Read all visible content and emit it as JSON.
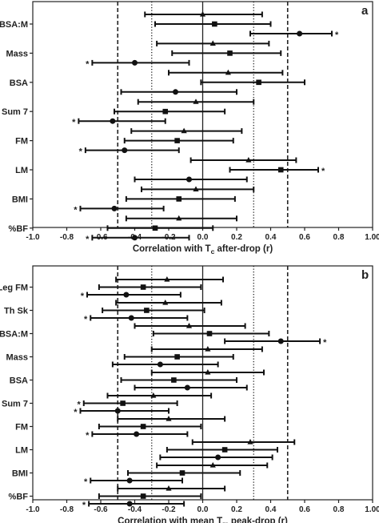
{
  "chart_data": [
    {
      "type": "forest",
      "panel_label": "a",
      "xlabel_main": "Correlation with T",
      "xlabel_sub": "c",
      "xlabel_tail": " after-drop (r)",
      "xlim": [
        -1.0,
        1.0
      ],
      "xticks": [
        "-1.0",
        "-0.8",
        "-0.6",
        "-0.4",
        "-0.2",
        "0.0",
        "0.2",
        "0.4",
        "0.6",
        "0.8",
        "1.00"
      ],
      "reference_lines": {
        "solid": [
          0.0
        ],
        "dotted": [
          -0.3,
          0.3
        ],
        "dashed": [
          -0.5,
          0.5
        ]
      },
      "categories": [
        "BSA:M",
        "Mass",
        "BSA",
        "Sum 7",
        "FM",
        "LM",
        "BMI",
        "%BF"
      ],
      "marker_order": [
        "triangle",
        "square",
        "circle"
      ],
      "rows": [
        [
          {
            "marker": "triangle",
            "r": 0.0,
            "lo": -0.34,
            "hi": 0.35,
            "sig": false
          },
          {
            "marker": "square",
            "r": 0.07,
            "lo": -0.28,
            "hi": 0.4,
            "sig": false
          },
          {
            "marker": "circle",
            "r": 0.57,
            "lo": 0.28,
            "hi": 0.76,
            "sig": true
          }
        ],
        [
          {
            "marker": "triangle",
            "r": 0.06,
            "lo": -0.27,
            "hi": 0.39,
            "sig": false
          },
          {
            "marker": "square",
            "r": 0.16,
            "lo": -0.18,
            "hi": 0.46,
            "sig": false
          },
          {
            "marker": "circle",
            "r": -0.4,
            "lo": -0.65,
            "hi": -0.08,
            "sig": true
          }
        ],
        [
          {
            "marker": "triangle",
            "r": 0.15,
            "lo": -0.2,
            "hi": 0.47,
            "sig": false
          },
          {
            "marker": "square",
            "r": 0.33,
            "lo": -0.01,
            "hi": 0.6,
            "sig": false
          },
          {
            "marker": "circle",
            "r": -0.16,
            "lo": -0.48,
            "hi": 0.2,
            "sig": false
          }
        ],
        [
          {
            "marker": "triangle",
            "r": -0.04,
            "lo": -0.38,
            "hi": 0.3,
            "sig": false
          },
          {
            "marker": "square",
            "r": -0.22,
            "lo": -0.52,
            "hi": 0.13,
            "sig": false
          },
          {
            "marker": "circle",
            "r": -0.53,
            "lo": -0.73,
            "hi": -0.22,
            "sig": true
          }
        ],
        [
          {
            "marker": "triangle",
            "r": -0.11,
            "lo": -0.42,
            "hi": 0.23,
            "sig": false
          },
          {
            "marker": "square",
            "r": -0.15,
            "lo": -0.46,
            "hi": 0.18,
            "sig": false
          },
          {
            "marker": "circle",
            "r": -0.46,
            "lo": -0.69,
            "hi": -0.14,
            "sig": true
          }
        ],
        [
          {
            "marker": "triangle",
            "r": 0.27,
            "lo": -0.07,
            "hi": 0.55,
            "sig": false
          },
          {
            "marker": "square",
            "r": 0.46,
            "lo": 0.16,
            "hi": 0.68,
            "sig": true
          },
          {
            "marker": "circle",
            "r": -0.08,
            "lo": -0.4,
            "hi": 0.26,
            "sig": false
          }
        ],
        [
          {
            "marker": "triangle",
            "r": -0.04,
            "lo": -0.36,
            "hi": 0.3,
            "sig": false
          },
          {
            "marker": "square",
            "r": -0.14,
            "lo": -0.45,
            "hi": 0.19,
            "sig": false
          },
          {
            "marker": "circle",
            "r": -0.52,
            "lo": -0.72,
            "hi": -0.23,
            "sig": true
          }
        ],
        [
          {
            "marker": "triangle",
            "r": -0.14,
            "lo": -0.45,
            "hi": 0.2,
            "sig": false
          },
          {
            "marker": "square",
            "r": -0.28,
            "lo": -0.56,
            "hi": 0.06,
            "sig": false
          },
          {
            "marker": "circle",
            "r": -0.4,
            "lo": -0.65,
            "hi": -0.08,
            "sig": true
          }
        ]
      ]
    },
    {
      "type": "forest",
      "panel_label": "b",
      "xlabel_main": "Correlation with mean T",
      "xlabel_sub": "m",
      "xlabel_tail": " peak-drop (r)",
      "xlim": [
        -1.0,
        1.0
      ],
      "xticks": [
        "-1.0",
        "-0.8",
        "-0.6",
        "-0.4",
        "-0.2",
        "0.0",
        "0.2",
        "0.4",
        "0.6",
        "0.8",
        "1.00"
      ],
      "reference_lines": {
        "solid": [
          0.0
        ],
        "dotted": [
          -0.3,
          0.3
        ],
        "dashed": [
          -0.5,
          0.5
        ]
      },
      "categories": [
        "Leg FM",
        "Th Sk",
        "BSA:M",
        "Mass",
        "BSA",
        "Sum 7",
        "FM",
        "LM",
        "BMI",
        "%BF"
      ],
      "marker_order": [
        "triangle",
        "square",
        "circle"
      ],
      "rows": [
        [
          {
            "marker": "triangle",
            "r": -0.21,
            "lo": -0.51,
            "hi": 0.12,
            "sig": false
          },
          {
            "marker": "square",
            "r": -0.35,
            "lo": -0.61,
            "hi": -0.01,
            "sig": false
          },
          {
            "marker": "circle",
            "r": -0.45,
            "lo": -0.68,
            "hi": -0.13,
            "sig": true
          }
        ],
        [
          {
            "marker": "triangle",
            "r": -0.22,
            "lo": -0.51,
            "hi": 0.11,
            "sig": false
          },
          {
            "marker": "square",
            "r": -0.33,
            "lo": -0.59,
            "hi": 0.01,
            "sig": false
          },
          {
            "marker": "circle",
            "r": -0.42,
            "lo": -0.66,
            "hi": -0.09,
            "sig": true
          }
        ],
        [
          {
            "marker": "triangle",
            "r": -0.08,
            "lo": -0.4,
            "hi": 0.25,
            "sig": false
          },
          {
            "marker": "square",
            "r": 0.04,
            "lo": -0.29,
            "hi": 0.39,
            "sig": false
          },
          {
            "marker": "circle",
            "r": 0.46,
            "lo": 0.13,
            "hi": 0.69,
            "sig": true
          }
        ],
        [
          {
            "marker": "triangle",
            "r": 0.03,
            "lo": -0.3,
            "hi": 0.35,
            "sig": false
          },
          {
            "marker": "square",
            "r": -0.15,
            "lo": -0.46,
            "hi": 0.18,
            "sig": false
          },
          {
            "marker": "circle",
            "r": -0.25,
            "lo": -0.53,
            "hi": 0.09,
            "sig": false
          }
        ],
        [
          {
            "marker": "triangle",
            "r": 0.03,
            "lo": -0.3,
            "hi": 0.36,
            "sig": false
          },
          {
            "marker": "square",
            "r": -0.17,
            "lo": -0.48,
            "hi": 0.2,
            "sig": false
          },
          {
            "marker": "circle",
            "r": -0.09,
            "lo": -0.4,
            "hi": 0.26,
            "sig": false
          }
        ],
        [
          {
            "marker": "triangle",
            "r": -0.29,
            "lo": -0.56,
            "hi": 0.05,
            "sig": false
          },
          {
            "marker": "square",
            "r": -0.47,
            "lo": -0.7,
            "hi": -0.15,
            "sig": true
          },
          {
            "marker": "circle",
            "r": -0.5,
            "lo": -0.72,
            "hi": -0.2,
            "sig": true
          }
        ],
        [
          {
            "marker": "triangle",
            "r": -0.2,
            "lo": -0.5,
            "hi": 0.13,
            "sig": false
          },
          {
            "marker": "square",
            "r": -0.35,
            "lo": -0.61,
            "hi": -0.01,
            "sig": false
          },
          {
            "marker": "circle",
            "r": -0.39,
            "lo": -0.65,
            "hi": -0.09,
            "sig": true
          }
        ],
        [
          {
            "marker": "triangle",
            "r": 0.28,
            "lo": -0.06,
            "hi": 0.54,
            "sig": false
          },
          {
            "marker": "square",
            "r": 0.13,
            "lo": -0.21,
            "hi": 0.44,
            "sig": false
          },
          {
            "marker": "circle",
            "r": 0.09,
            "lo": -0.25,
            "hi": 0.41,
            "sig": false
          }
        ],
        [
          {
            "marker": "triangle",
            "r": 0.06,
            "lo": -0.27,
            "hi": 0.38,
            "sig": false
          },
          {
            "marker": "square",
            "r": -0.12,
            "lo": -0.44,
            "hi": 0.22,
            "sig": false
          },
          {
            "marker": "circle",
            "r": -0.43,
            "lo": -0.66,
            "hi": -0.12,
            "sig": true
          }
        ],
        [
          {
            "marker": "triangle",
            "r": -0.2,
            "lo": -0.5,
            "hi": 0.13,
            "sig": false
          },
          {
            "marker": "square",
            "r": -0.35,
            "lo": -0.61,
            "hi": -0.01,
            "sig": false
          },
          {
            "marker": "circle",
            "r": -0.43,
            "lo": -0.67,
            "hi": -0.11,
            "sig": true
          }
        ]
      ]
    }
  ],
  "significance_mark": "*"
}
